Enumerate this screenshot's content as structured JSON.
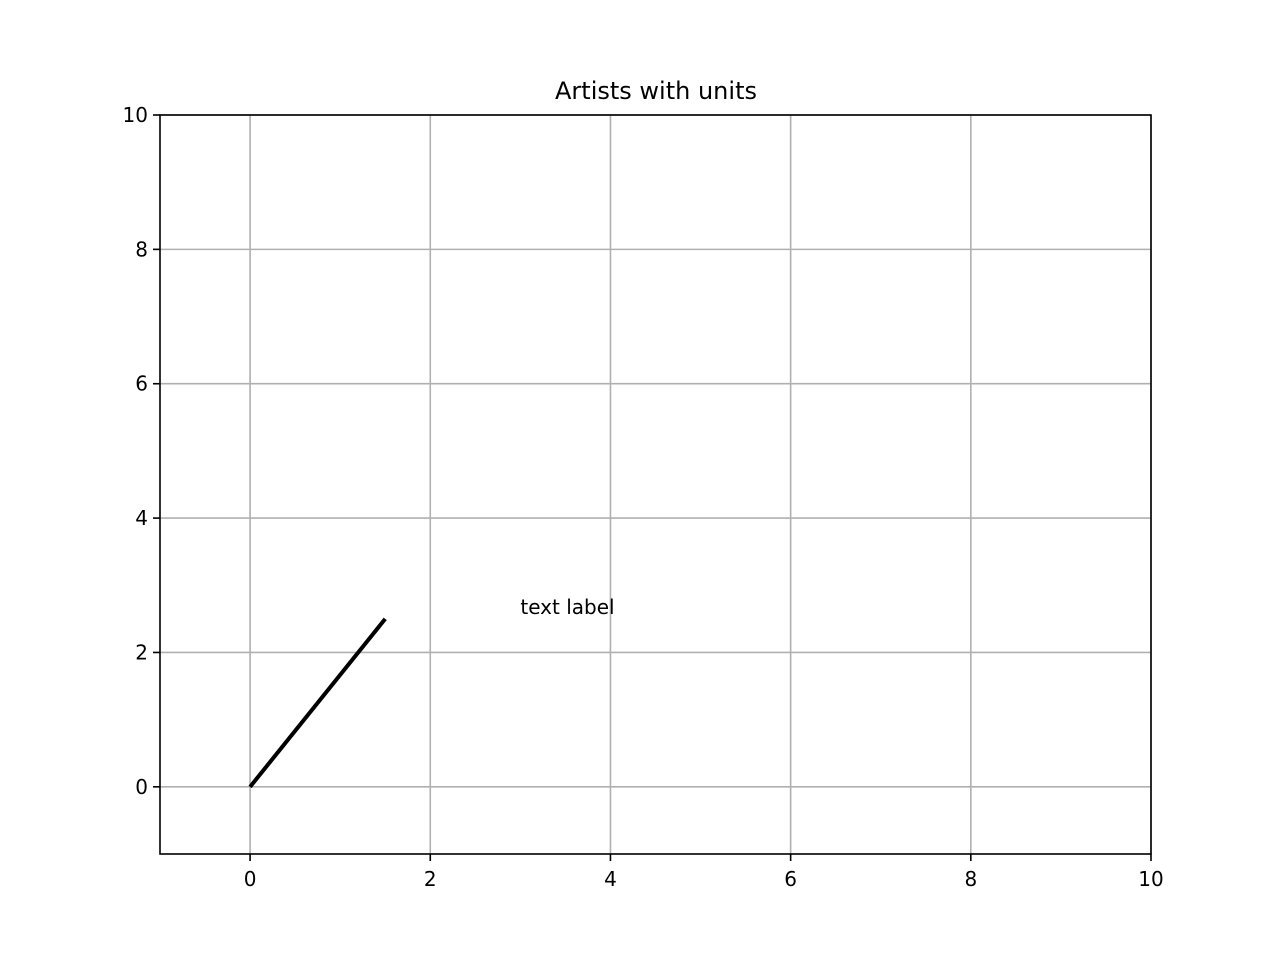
{
  "chart_data": {
    "type": "line",
    "title": "Artists with units",
    "xlabel": "",
    "ylabel": "",
    "xlim": [
      -1,
      10
    ],
    "ylim": [
      -1,
      10
    ],
    "grid": true,
    "xticks": [
      0,
      2,
      4,
      6,
      8,
      10
    ],
    "yticks": [
      0,
      2,
      4,
      6,
      8,
      10
    ],
    "xtick_labels": [
      "0",
      "2",
      "4",
      "6",
      "8",
      "10"
    ],
    "ytick_labels": [
      "0",
      "2",
      "4",
      "6",
      "8",
      "10"
    ],
    "series": [
      {
        "x": [
          0,
          1.5
        ],
        "y": [
          0,
          2.5
        ],
        "color": "#000000"
      }
    ],
    "annotations": [
      {
        "text": "text label",
        "x": 3,
        "y": 2.5
      }
    ],
    "colors": {
      "grid": "#b0b0b0",
      "axes": "#000000"
    }
  }
}
